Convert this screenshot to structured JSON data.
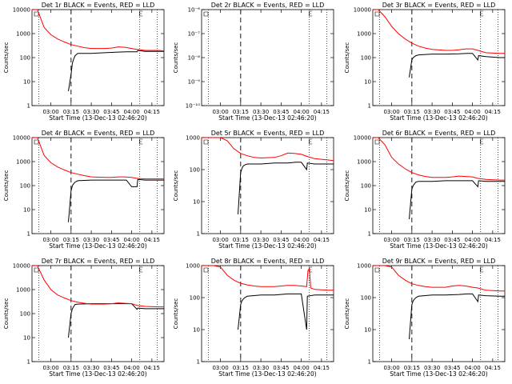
{
  "figure": {
    "xlabel": "Start Time (13-Dec-13 02:46:20)",
    "ylabel": "Counts/sec",
    "x_tick_labels": [
      "03:00",
      "03:15",
      "03:30",
      "03:45",
      "04:00",
      "04:15"
    ],
    "x_tick_minutes": [
      0,
      15,
      30,
      45,
      60,
      75
    ],
    "x_range_minutes": [
      -14,
      84
    ],
    "colors": {
      "events": "#000000",
      "lld": "#ff0000"
    },
    "markers": {
      "dotted_minutes": [
        -9,
        66,
        79
      ],
      "dashed_minute": 15
    }
  },
  "chart_data": [
    {
      "type": "line",
      "title": "Det 1r BLACK = Events, RED = LLD",
      "log_y": true,
      "ylim": [
        1,
        10000
      ],
      "y_ticks": [
        1,
        10,
        100,
        1000,
        10000
      ],
      "y_tick_labels": [
        "1",
        "10",
        "100",
        "1000",
        "10000"
      ],
      "series": [
        {
          "name": "Events",
          "x": [
            13,
            15,
            16,
            17,
            18,
            20,
            30,
            40,
            50,
            56,
            60,
            64,
            64.5,
            70,
            80,
            84
          ],
          "y": [
            4,
            20,
            60,
            90,
            120,
            150,
            150,
            160,
            170,
            175,
            175,
            175,
            200,
            180,
            180,
            180
          ]
        },
        {
          "name": "LLD",
          "x": [
            -14,
            -10,
            -5,
            0,
            5,
            10,
            15,
            20,
            25,
            30,
            40,
            45,
            50,
            55,
            60,
            64,
            70,
            80,
            84
          ],
          "y": [
            10000,
            10000,
            1800,
            900,
            600,
            450,
            350,
            300,
            260,
            240,
            240,
            250,
            280,
            270,
            240,
            220,
            200,
            200,
            190
          ]
        }
      ]
    },
    {
      "type": "line",
      "title": "Det 2r BLACK = Events, RED = LLD",
      "log_y": true,
      "ylim": [
        1e-10,
        1e-06
      ],
      "y_ticks": [
        1e-10,
        1e-09,
        1e-08,
        1e-07,
        1e-06
      ],
      "y_tick_labels": [
        "10⁻¹⁰",
        "10⁻⁹",
        "10⁻⁸",
        "10⁻⁷",
        "10⁻⁶"
      ],
      "series": []
    },
    {
      "type": "line",
      "title": "Det 3r BLACK = Events, RED = LLD",
      "log_y": true,
      "ylim": [
        1,
        10000
      ],
      "y_ticks": [
        1,
        10,
        100,
        1000,
        10000
      ],
      "y_tick_labels": [
        "1",
        "10",
        "100",
        "1000",
        "10000"
      ],
      "series": [
        {
          "name": "Events",
          "x": [
            13,
            15,
            16,
            17,
            18,
            20,
            30,
            40,
            50,
            56,
            60,
            64,
            64.5,
            70,
            80,
            84
          ],
          "y": [
            15,
            80,
            100,
            110,
            120,
            130,
            140,
            140,
            145,
            150,
            150,
            80,
            120,
            110,
            100,
            100
          ]
        },
        {
          "name": "LLD",
          "x": [
            -14,
            -10,
            -5,
            0,
            5,
            10,
            15,
            20,
            25,
            30,
            40,
            45,
            50,
            55,
            60,
            64,
            70,
            80,
            84
          ],
          "y": [
            10000,
            10000,
            5000,
            2000,
            1000,
            600,
            400,
            300,
            250,
            220,
            200,
            200,
            210,
            230,
            230,
            200,
            160,
            150,
            150
          ]
        }
      ]
    },
    {
      "type": "line",
      "title": "Det 4r BLACK = Events, RED = LLD",
      "log_y": true,
      "ylim": [
        1,
        10000
      ],
      "y_ticks": [
        1,
        10,
        100,
        1000,
        10000
      ],
      "y_tick_labels": [
        "1",
        "10",
        "100",
        "1000",
        "10000"
      ],
      "series": [
        {
          "name": "Events",
          "x": [
            13,
            15,
            16,
            17,
            18,
            20,
            30,
            40,
            50,
            56,
            60,
            64,
            64.5,
            70,
            80,
            84
          ],
          "y": [
            3,
            60,
            100,
            120,
            140,
            160,
            170,
            170,
            170,
            170,
            90,
            90,
            180,
            170,
            170,
            170
          ]
        },
        {
          "name": "LLD",
          "x": [
            -14,
            -10,
            -5,
            0,
            5,
            10,
            15,
            20,
            25,
            30,
            40,
            45,
            50,
            55,
            60,
            64,
            70,
            80,
            84
          ],
          "y": [
            10000,
            10000,
            1800,
            900,
            600,
            450,
            350,
            300,
            260,
            230,
            220,
            220,
            230,
            230,
            220,
            200,
            190,
            190,
            190
          ]
        }
      ]
    },
    {
      "type": "line",
      "title": "Det 5r BLACK = Events, RED = LLD",
      "log_y": true,
      "ylim": [
        1,
        1000
      ],
      "y_ticks": [
        1,
        10,
        100,
        1000
      ],
      "y_tick_labels": [
        "1",
        "10",
        "100",
        "1000"
      ],
      "series": [
        {
          "name": "Events",
          "x": [
            13,
            15,
            16,
            17,
            18,
            20,
            30,
            40,
            50,
            56,
            60,
            64,
            64.5,
            70,
            80,
            84
          ],
          "y": [
            4,
            80,
            110,
            130,
            140,
            150,
            150,
            160,
            160,
            170,
            170,
            100,
            160,
            150,
            150,
            150
          ]
        },
        {
          "name": "LLD",
          "x": [
            -14,
            -10,
            -5,
            0,
            5,
            10,
            15,
            20,
            25,
            30,
            40,
            45,
            50,
            55,
            60,
            64,
            70,
            80,
            84
          ],
          "y": [
            1000,
            1000,
            1000,
            1000,
            800,
            450,
            320,
            270,
            240,
            230,
            240,
            270,
            330,
            320,
            300,
            260,
            220,
            200,
            190
          ]
        }
      ]
    },
    {
      "type": "line",
      "title": "Det 6r BLACK = Events, RED = LLD",
      "log_y": true,
      "ylim": [
        1,
        10000
      ],
      "y_ticks": [
        1,
        10,
        100,
        1000,
        10000
      ],
      "y_tick_labels": [
        "1",
        "10",
        "100",
        "1000",
        "10000"
      ],
      "series": [
        {
          "name": "Events",
          "x": [
            13,
            15,
            16,
            17,
            18,
            20,
            30,
            40,
            50,
            56,
            60,
            64,
            64.5,
            70,
            80,
            84
          ],
          "y": [
            4,
            70,
            100,
            120,
            140,
            150,
            150,
            160,
            160,
            160,
            160,
            90,
            160,
            150,
            150,
            150
          ]
        },
        {
          "name": "LLD",
          "x": [
            -14,
            -10,
            -5,
            0,
            5,
            10,
            15,
            20,
            25,
            30,
            40,
            45,
            50,
            55,
            60,
            64,
            70,
            80,
            84
          ],
          "y": [
            10000,
            10000,
            5000,
            1500,
            800,
            500,
            350,
            280,
            240,
            220,
            220,
            230,
            250,
            240,
            230,
            200,
            180,
            170,
            170
          ]
        }
      ]
    },
    {
      "type": "line",
      "title": "Det 7r BLACK = Events, RED = LLD",
      "log_y": true,
      "ylim": [
        1,
        10000
      ],
      "y_ticks": [
        1,
        10,
        100,
        1000,
        10000
      ],
      "y_tick_labels": [
        "1",
        "10",
        "100",
        "1000",
        "10000"
      ],
      "series": [
        {
          "name": "Events",
          "x": [
            13,
            15,
            16,
            17,
            18,
            20,
            30,
            40,
            50,
            56,
            60,
            64,
            64.5,
            70,
            80,
            84
          ],
          "y": [
            10,
            100,
            160,
            200,
            240,
            250,
            260,
            260,
            260,
            260,
            260,
            150,
            170,
            160,
            160,
            160
          ]
        },
        {
          "name": "LLD",
          "x": [
            -14,
            -10,
            -5,
            0,
            5,
            10,
            15,
            20,
            25,
            30,
            40,
            45,
            50,
            55,
            60,
            64,
            70,
            80,
            84
          ],
          "y": [
            10000,
            10000,
            2500,
            1000,
            600,
            450,
            350,
            300,
            270,
            250,
            250,
            260,
            280,
            270,
            260,
            220,
            200,
            190,
            190
          ]
        }
      ]
    },
    {
      "type": "line",
      "title": "Det 8r BLACK = Events, RED = LLD",
      "log_y": true,
      "ylim": [
        1,
        1000
      ],
      "y_ticks": [
        1,
        10,
        100,
        1000
      ],
      "y_tick_labels": [
        "1",
        "10",
        "100",
        "1000"
      ],
      "series": [
        {
          "name": "Events",
          "x": [
            13,
            15,
            16,
            17,
            18,
            20,
            30,
            40,
            50,
            56,
            60,
            64,
            64.5,
            70,
            80,
            84
          ],
          "y": [
            10,
            60,
            80,
            90,
            100,
            110,
            120,
            120,
            130,
            130,
            130,
            10,
            110,
            120,
            120,
            120
          ]
        },
        {
          "name": "LLD",
          "x": [
            -14,
            -10,
            -5,
            0,
            5,
            10,
            15,
            20,
            25,
            30,
            40,
            45,
            50,
            55,
            60,
            64,
            65,
            66,
            67,
            70,
            80,
            84
          ],
          "y": [
            1000,
            1000,
            1000,
            900,
            500,
            350,
            280,
            250,
            230,
            220,
            220,
            230,
            240,
            240,
            230,
            220,
            700,
            800,
            200,
            180,
            170,
            170
          ]
        }
      ]
    },
    {
      "type": "line",
      "title": "Det 9r BLACK = Events, RED = LLD",
      "log_y": true,
      "ylim": [
        1,
        1000
      ],
      "y_ticks": [
        1,
        10,
        100,
        1000
      ],
      "y_tick_labels": [
        "1",
        "10",
        "100",
        "1000"
      ],
      "series": [
        {
          "name": "Events",
          "x": [
            13,
            15,
            16,
            17,
            18,
            20,
            30,
            40,
            50,
            56,
            60,
            64,
            64.5,
            70,
            80,
            84
          ],
          "y": [
            5,
            60,
            80,
            90,
            100,
            110,
            120,
            120,
            125,
            130,
            130,
            75,
            120,
            115,
            110,
            110
          ]
        },
        {
          "name": "LLD",
          "x": [
            -14,
            -10,
            -5,
            0,
            5,
            10,
            15,
            20,
            25,
            30,
            40,
            45,
            50,
            55,
            60,
            64,
            70,
            80,
            84
          ],
          "y": [
            1000,
            1000,
            1000,
            900,
            500,
            350,
            270,
            240,
            220,
            210,
            210,
            230,
            240,
            230,
            210,
            200,
            170,
            160,
            160
          ]
        }
      ]
    }
  ]
}
